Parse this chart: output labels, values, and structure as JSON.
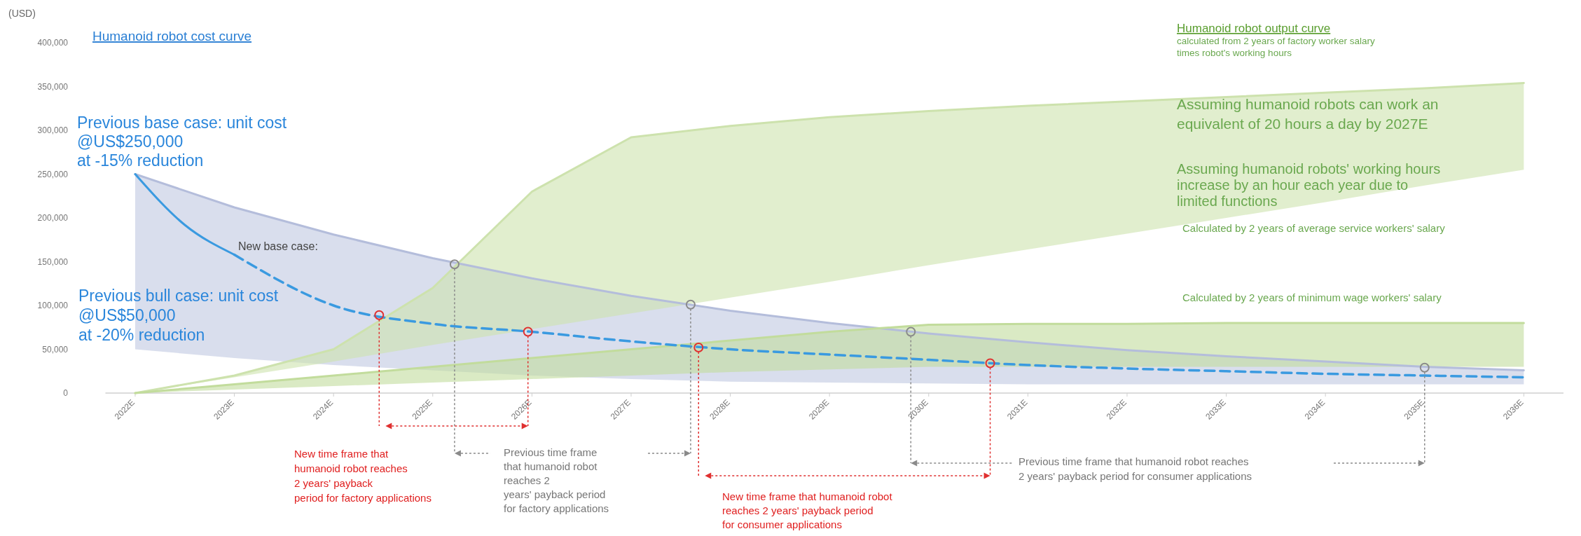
{
  "chart_data": {
    "type": "line",
    "ylabel": "(USD)",
    "x": [
      2022,
      2023,
      2024,
      2025,
      2026,
      2027,
      2028,
      2029,
      2030,
      2031,
      2032,
      2033,
      2034,
      2035,
      2036
    ],
    "xlim": [
      2021.7,
      2036.4
    ],
    "xticks": [
      {
        "value": 2022,
        "label": "2022E"
      },
      {
        "value": 2023,
        "label": "2023E"
      },
      {
        "value": 2024,
        "label": "2024E"
      },
      {
        "value": 2025,
        "label": "2025E"
      },
      {
        "value": 2026,
        "label": "2026E"
      },
      {
        "value": 2027,
        "label": "2027E"
      },
      {
        "value": 2028,
        "label": "2028E"
      },
      {
        "value": 2029,
        "label": "2029E"
      },
      {
        "value": 2030,
        "label": "2030E"
      },
      {
        "value": 2031,
        "label": "2031E"
      },
      {
        "value": 2032,
        "label": "2032E"
      },
      {
        "value": 2033,
        "label": "2033E"
      },
      {
        "value": 2034,
        "label": "2034E"
      },
      {
        "value": 2035,
        "label": "2035E"
      },
      {
        "value": 2036,
        "label": "2036E"
      }
    ],
    "ylim": [
      0,
      400000
    ],
    "yticks": [
      {
        "value": 0,
        "label": "0"
      },
      {
        "value": 50000,
        "label": "50,000"
      },
      {
        "value": 100000,
        "label": "100,000"
      },
      {
        "value": 150000,
        "label": "150,000"
      },
      {
        "value": 200000,
        "label": "200,000"
      },
      {
        "value": 250000,
        "label": "250,000"
      },
      {
        "value": 300000,
        "label": "300,000"
      },
      {
        "value": 350000,
        "label": "350,000"
      },
      {
        "value": 400000,
        "label": "400,000"
      }
    ],
    "grid": false,
    "series": [
      {
        "color": "#b4bddb",
        "line_style": "solid",
        "values": [
          250000,
          212000,
          181000,
          154000,
          131000,
          111000,
          94000,
          80000,
          68000,
          58000,
          49000,
          42000,
          36000,
          30000,
          26000
        ],
        "upper": [
          250000,
          212000,
          181000,
          154000,
          131000,
          111000,
          94000,
          80000,
          68000,
          58000,
          49000,
          42000,
          36000,
          30000,
          26000
        ],
        "lower": [
          50000,
          40000,
          32000,
          26000,
          20000,
          16000,
          13000,
          12000,
          11000,
          10000,
          10000,
          10000,
          10000,
          10000,
          10000
        ]
      },
      {
        "color": "#cde2ad",
        "line_style": "solid",
        "values": [
          0,
          20000,
          50000,
          120000,
          230000,
          292000,
          305000,
          315000,
          322000,
          328000,
          333000,
          338000,
          343000,
          348000,
          354000
        ],
        "upper": [
          0,
          20000,
          50000,
          120000,
          230000,
          292000,
          305000,
          315000,
          322000,
          328000,
          333000,
          338000,
          343000,
          348000,
          354000
        ],
        "lower": [
          0,
          18000,
          36000,
          55000,
          73000,
          91000,
          109000,
          127000,
          146000,
          164000,
          182000,
          200000,
          218000,
          237000,
          255000
        ]
      },
      {
        "color": "#c2dc9c",
        "line_style": "solid",
        "values": [
          0,
          10000,
          20000,
          30000,
          40000,
          50000,
          60000,
          70000,
          78000,
          79000,
          79000,
          80000,
          80000,
          80000,
          80000
        ],
        "upper": [
          0,
          10000,
          20000,
          30000,
          40000,
          50000,
          60000,
          70000,
          78000,
          79000,
          79000,
          80000,
          80000,
          80000,
          80000
        ],
        "lower": [
          0,
          4000,
          8000,
          12000,
          16000,
          20000,
          24000,
          27000,
          30000,
          30000,
          30000,
          30000,
          30000,
          30000,
          30000
        ]
      },
      {
        "color": "#3a9ae0",
        "line_style": "solid",
        "x": [
          2022,
          2022.5,
          2023
        ],
        "values": [
          250000,
          192000,
          158000
        ]
      },
      {
        "color": "#3a9ae0",
        "line_style": "dashed",
        "x": [
          2023,
          2024,
          2025,
          2026,
          2027,
          2028,
          2029,
          2030,
          2031,
          2032,
          2033,
          2034,
          2035,
          2036
        ],
        "values": [
          158000,
          100000,
          79000,
          70000,
          59000,
          50000,
          44000,
          38000,
          32000,
          28000,
          25000,
          22000,
          20000,
          18000
        ]
      },
      {
        "type": "scatter",
        "color": "#8a8a8a",
        "marker": "circle",
        "x": [
          2025.22,
          2027.6,
          2029.82,
          2035.0
        ],
        "values": [
          147000,
          101000,
          70000,
          29000
        ]
      },
      {
        "type": "scatter",
        "color": "#e03030",
        "marker": "circle",
        "x": [
          2024.46,
          2025.96,
          2027.68,
          2030.62
        ],
        "values": [
          89000,
          70000,
          52000,
          34000
        ]
      }
    ],
    "annotations": [
      "Humanoid robot cost curve",
      "Previous base case: unit cost @US$250,000 at -15% reduction",
      "New base case:",
      "Previous bull case: unit cost @US$50,000 at -20% reduction",
      "Humanoid robot output curve",
      "calculated from 2 years of factory worker salary times robot's working hours",
      "Assuming humanoid robots can work an equivalent of 20 hours a day by 2027E",
      "Assuming humanoid robots' working hours increase by an hour each year due to limited functions",
      "Calculated by 2 years of average service workers' salary",
      "Calculated by 2 years of minimum wage workers' salary",
      "New time frame that humanoid robot reaches 2 years' payback period for factory applications",
      "Previous time frame that humanoid robot reaches 2 years' payback period for factory applications",
      "New time frame that humanoid robot reaches 2 years' payback period for consumer applications",
      "Previous time frame that humanoid robot reaches 2 years' payback period for consumer applications"
    ]
  }
}
